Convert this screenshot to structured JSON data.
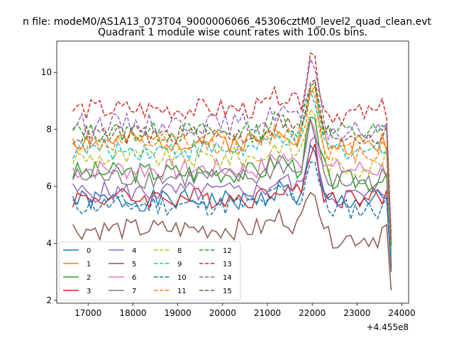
{
  "figure": {
    "suptitle": "n file: modeM0/AS1A13_073T04_9000006066_45306cztM0_level2_quad_clean.evt",
    "offset_text": "+4.455e8"
  },
  "chart_data": {
    "type": "line",
    "title": "Quadrant 1 module wise count rates with 100.0s bins.",
    "xlabel": "",
    "ylabel": "",
    "xlim": [
      16300,
      24150
    ],
    "ylim": [
      1.9,
      11.1
    ],
    "x_ticks": [
      17000,
      18000,
      19000,
      20000,
      21000,
      22000,
      23000,
      24000
    ],
    "y_ticks": [
      2,
      4,
      6,
      8,
      10
    ],
    "x_tick_labels": [
      "17000",
      "18000",
      "19000",
      "20000",
      "21000",
      "22000",
      "23000",
      "24000"
    ],
    "y_tick_labels": [
      "2",
      "4",
      "6",
      "8",
      "10"
    ],
    "grid": false,
    "legend": "lower-left, 4 columns",
    "x_start": 16660,
    "x_step": 100,
    "n_points": 72,
    "series": [
      {
        "name": "0",
        "color": "#1f77b4",
        "style": "solid",
        "base": 5.5,
        "end": 3.0
      },
      {
        "name": "1",
        "color": "#ff7f0e",
        "style": "solid",
        "base": 7.6,
        "end": 3.6
      },
      {
        "name": "2",
        "color": "#2ca02c",
        "style": "solid",
        "base": 6.5,
        "end": 3.2
      },
      {
        "name": "3",
        "color": "#d62728",
        "style": "solid",
        "base": 5.6,
        "end": 3.1
      },
      {
        "name": "4",
        "color": "#9467bd",
        "style": "solid",
        "base": 5.8,
        "end": 3.4
      },
      {
        "name": "5",
        "color": "#8c564b",
        "style": "solid",
        "base": 4.5,
        "end": 2.35
      },
      {
        "name": "6",
        "color": "#e377c2",
        "style": "solid",
        "base": 6.6,
        "end": 3.5
      },
      {
        "name": "7",
        "color": "#7f7f7f",
        "style": "solid",
        "base": 6.3,
        "end": 3.3
      },
      {
        "name": "8",
        "color": "#bcbd22",
        "style": "dashed",
        "base": 7.0,
        "end": 3.4
      },
      {
        "name": "9",
        "color": "#17becf",
        "style": "dashed",
        "base": 7.3,
        "end": 3.6
      },
      {
        "name": "10",
        "color": "#1f77b4",
        "style": "dashed",
        "base": 5.35,
        "end": 3.2
      },
      {
        "name": "11",
        "color": "#ff7f0e",
        "style": "dashed",
        "base": 7.5,
        "end": 3.8
      },
      {
        "name": "12",
        "color": "#2ca02c",
        "style": "dashed",
        "base": 7.9,
        "end": 4.0
      },
      {
        "name": "13",
        "color": "#d62728",
        "style": "dashed",
        "base": 8.7,
        "end": 4.3
      },
      {
        "name": "14",
        "color": "#9467bd",
        "style": "dashed",
        "base": 8.2,
        "end": 4.1
      },
      {
        "name": "15",
        "color": "#8c564b",
        "style": "dashed",
        "base": 7.8,
        "end": 3.9
      }
    ]
  }
}
